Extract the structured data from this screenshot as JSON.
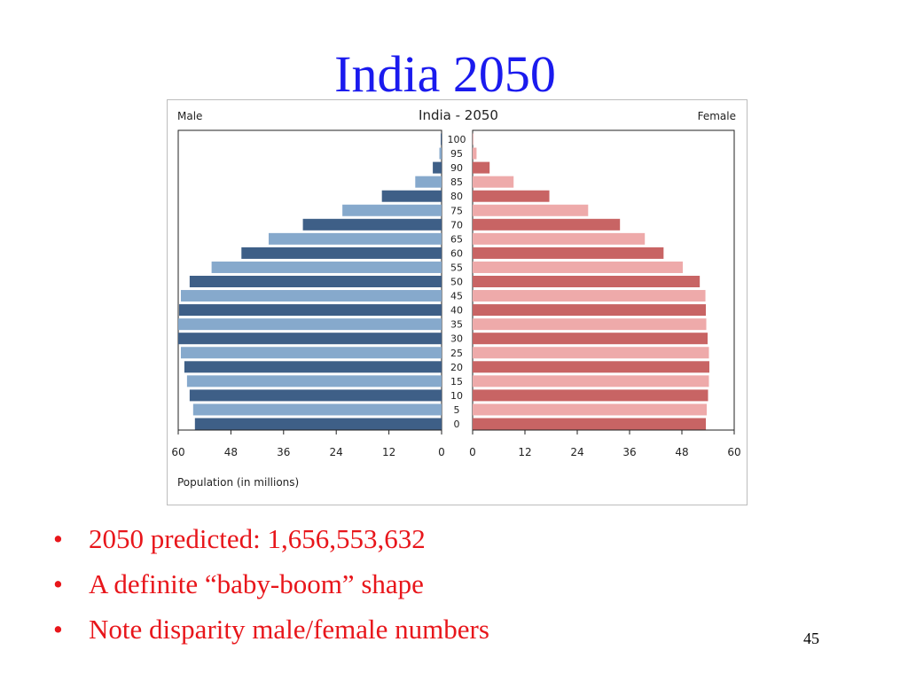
{
  "slide": {
    "title": "India 2050",
    "bullets": [
      "2050 predicted: 1,656,553,632",
      "A definite “baby-boom” shape",
      "Note disparity male/female numbers"
    ],
    "bullet_symbol": "•",
    "page_number": "45"
  },
  "chart_data": {
    "type": "bar",
    "orientation": "horizontal-population-pyramid",
    "title": "India - 2050",
    "left_label": "Male",
    "right_label": "Female",
    "xlabel": "Population (in millions)",
    "xlim": [
      0,
      60
    ],
    "x_ticks": [
      "60",
      "48",
      "36",
      "24",
      "12",
      "0",
      "0",
      "12",
      "24",
      "36",
      "48",
      "60"
    ],
    "categories": [
      "100",
      "95",
      "90",
      "85",
      "80",
      "75",
      "70",
      "65",
      "60",
      "55",
      "50",
      "45",
      "40",
      "35",
      "30",
      "25",
      "20",
      "15",
      "10",
      "5",
      "0"
    ],
    "series": [
      {
        "name": "Male",
        "values": [
          0.2,
          0.5,
          2.0,
          6.0,
          13.6,
          22.6,
          31.6,
          39.4,
          45.6,
          52.4,
          57.4,
          59.4,
          59.8,
          60.0,
          60.0,
          59.4,
          58.6,
          58.0,
          57.4,
          56.6,
          56.2
        ],
        "colors": [
          "#3e5f87",
          "#86a9cc"
        ]
      },
      {
        "name": "Female",
        "values": [
          0.1,
          0.9,
          3.9,
          9.4,
          17.6,
          26.5,
          33.8,
          39.5,
          43.8,
          48.2,
          52.1,
          53.4,
          53.5,
          53.6,
          53.9,
          54.2,
          54.3,
          54.2,
          54.0,
          53.7,
          53.5
        ],
        "colors": [
          "#c86464",
          "#eeaaaa"
        ]
      }
    ],
    "grid": false,
    "legend": "none"
  }
}
